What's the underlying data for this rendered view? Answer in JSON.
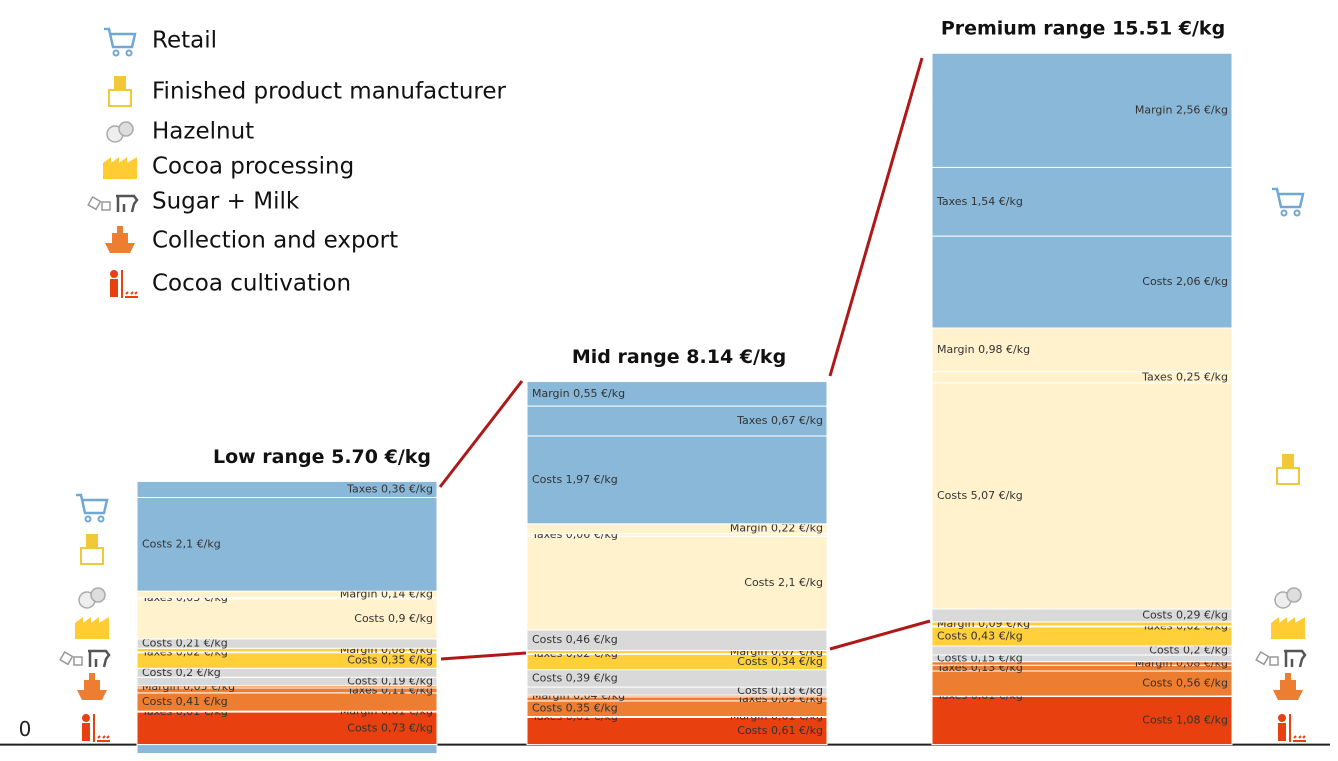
{
  "chart_data": {
    "type": "stacked_bar",
    "ylim": [
      -0.3,
      16.2
    ],
    "yticks": [
      0
    ],
    "legend": [
      {
        "name": "Retail",
        "color": "#8ab8d8"
      },
      {
        "name": "Finished product manufacturer",
        "color": "#fff2cc"
      },
      {
        "name": "Hazelnut",
        "color": "#d9d9d9"
      },
      {
        "name": "Cocoa processing",
        "color": "#ffd03a"
      },
      {
        "name": "Sugar + Milk",
        "color": "#d9d9d9"
      },
      {
        "name": "Collection and export",
        "color": "#ed7d31"
      },
      {
        "name": "Cocoa cultivation",
        "color": "#e8400f"
      }
    ],
    "bars": [
      {
        "title": "Low range 5.70 €/kg",
        "groups": [
          {
            "values": [
              2.1,
              0.36,
              -0.2
            ],
            "value_labels": [
              "Costs 2,1 €/kg",
              "Taxes 0,36 €/kg",
              null
            ]
          },
          {
            "values": [
              0.9,
              0.03,
              0.14
            ],
            "value_labels": [
              "Costs 0,9 €/kg",
              "Taxes 0,03 €/kg",
              "Margin 0,14 €/kg"
            ]
          },
          {
            "values": [
              0.21
            ],
            "value_labels": [
              "Costs 0,21 €/kg"
            ]
          },
          {
            "values": [
              0.35,
              0.02,
              0.08
            ],
            "value_labels": [
              "Costs 0,35 €/kg",
              "Taxes 0,02 €/kg",
              "Margin 0,08 €/kg"
            ]
          },
          {
            "values": [
              0.19,
              0.2
            ],
            "value_labels": [
              "Costs 0,19 €/kg",
              "Costs 0,2 €/kg"
            ]
          },
          {
            "values": [
              0.41,
              0.11,
              0.05
            ],
            "value_labels": [
              "Costs 0,41 €/kg",
              "Taxes 0,11 €/kg",
              "Margin 0,05 €/kg"
            ]
          },
          {
            "values": [
              0.73,
              0.01,
              0.01
            ],
            "value_labels": [
              "Costs 0,73 €/kg",
              "Taxes 0,01 €/kg",
              "Margin 0,01 €/kg"
            ]
          }
        ]
      },
      {
        "title": "Mid range 8.14 €/kg",
        "groups": [
          {
            "values": [
              1.97,
              0.67,
              0.55
            ],
            "value_labels": [
              "Costs 1,97 €/kg",
              "Taxes 0,67 €/kg",
              "Margin 0,55 €/kg"
            ]
          },
          {
            "values": [
              2.1,
              0.06,
              0.22
            ],
            "value_labels": [
              "Costs 2,1 €/kg",
              "Taxes 0,06 €/kg",
              "Margin 0,22 €/kg"
            ]
          },
          {
            "values": [
              0.46
            ],
            "value_labels": [
              "Costs 0,46 €/kg"
            ]
          },
          {
            "values": [
              0.34,
              0.02,
              0.07
            ],
            "value_labels": [
              "Costs 0,34 €/kg",
              "Taxes 0,02 €/kg",
              "Margin 0,07 €/kg"
            ]
          },
          {
            "values": [
              0.18,
              0.39
            ],
            "value_labels": [
              "Costs 0,18 €/kg",
              "Costs 0,39 €/kg"
            ]
          },
          {
            "values": [
              0.35,
              0.09,
              0.04
            ],
            "value_labels": [
              "Costs 0,35 €/kg",
              "Taxes 0,09 €/kg",
              "Margin 0,04 €/kg"
            ]
          },
          {
            "values": [
              0.61,
              0.01,
              0.01
            ],
            "value_labels": [
              "Costs 0,61 €/kg",
              "Taxes 0,01 €/kg",
              "Margin 0,01 €/kg"
            ]
          }
        ]
      },
      {
        "title": "Premium range 15.51 €/kg",
        "groups": [
          {
            "values": [
              2.06,
              1.54,
              2.56
            ],
            "value_labels": [
              "Costs 2,06 €/kg",
              "Taxes 1,54 €/kg",
              "Margin 2,56 €/kg"
            ]
          },
          {
            "values": [
              5.07,
              0.25,
              0.98
            ],
            "value_labels": [
              "Costs 5,07 €/kg",
              "Taxes 0,25 €/kg",
              "Margin 0,98 €/kg"
            ]
          },
          {
            "values": [
              0.29
            ],
            "value_labels": [
              "Costs 0,29 €/kg"
            ]
          },
          {
            "values": [
              0.43,
              0.02,
              0.09
            ],
            "value_labels": [
              "Costs 0,43 €/kg",
              "Taxes 0,02 €/kg",
              "Margin 0,09 €/kg"
            ]
          },
          {
            "values": [
              0.15,
              0.2
            ],
            "value_labels": [
              "Costs 0,15 €/kg",
              "Costs 0,2 €/kg"
            ]
          },
          {
            "values": [
              0.56,
              0.13,
              0.08
            ],
            "value_labels": [
              "Costs 0,56 €/kg",
              "Taxes 0,13 €/kg",
              "Margin 0,08 €/kg"
            ]
          },
          {
            "values": [
              1.08,
              0.01
            ],
            "value_labels": [
              "Costs 1,08 €/kg",
              "Taxes 0,01 €/kg"
            ]
          }
        ]
      }
    ]
  }
}
